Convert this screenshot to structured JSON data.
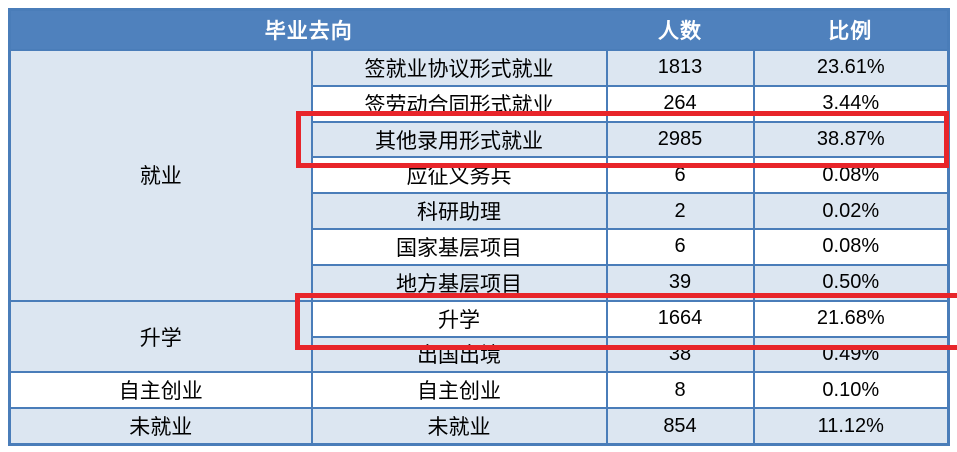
{
  "table": {
    "headers": {
      "destination": "毕业去向",
      "count": "人数",
      "ratio": "比例"
    },
    "groups": [
      {
        "label": "就业",
        "shaded": true,
        "rows": [
          {
            "label": "签就业协议形式就业",
            "count": "1813",
            "ratio": "23.61%",
            "highlighted": false
          },
          {
            "label": "签劳动合同形式就业",
            "count": "264",
            "ratio": "3.44%",
            "highlighted": false
          },
          {
            "label": "其他录用形式就业",
            "count": "2985",
            "ratio": "38.87%",
            "highlighted": true
          },
          {
            "label": "应征义务兵",
            "count": "6",
            "ratio": "0.08%",
            "highlighted": false
          },
          {
            "label": "科研助理",
            "count": "2",
            "ratio": "0.02%",
            "highlighted": false
          },
          {
            "label": "国家基层项目",
            "count": "6",
            "ratio": "0.08%",
            "highlighted": false
          },
          {
            "label": "地方基层项目",
            "count": "39",
            "ratio": "0.50%",
            "highlighted": false
          }
        ]
      },
      {
        "label": "升学",
        "shaded": true,
        "rows": [
          {
            "label": "升学",
            "count": "1664",
            "ratio": "21.68%",
            "highlighted": true
          },
          {
            "label": "出国出境",
            "count": "38",
            "ratio": "0.49%",
            "highlighted": false
          }
        ]
      },
      {
        "label": "自主创业",
        "shaded": false,
        "rows": [
          {
            "label": "自主创业",
            "count": "8",
            "ratio": "0.10%",
            "highlighted": false
          }
        ]
      },
      {
        "label": "未就业",
        "shaded": true,
        "rows": [
          {
            "label": "未就业",
            "count": "854",
            "ratio": "11.12%",
            "highlighted": false
          }
        ]
      }
    ]
  },
  "annotations": {
    "highlight_count": 2,
    "highlighted_rows": [
      "其他录用形式就业",
      "升学"
    ]
  },
  "colors": {
    "header_bg": "#4f81bd",
    "band_bg": "#dce6f1",
    "plain_bg": "#ffffff",
    "border": "#4a7db9",
    "highlight": "#e8252a",
    "text": "#000000",
    "header_text": "#ffffff"
  }
}
